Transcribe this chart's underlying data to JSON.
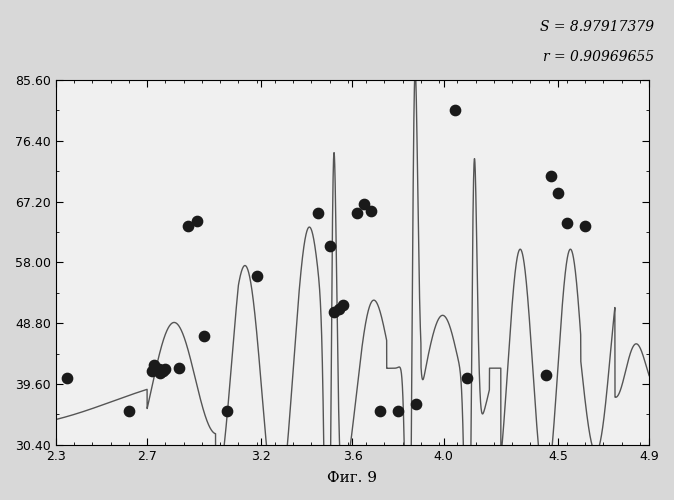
{
  "title": "",
  "xlabel": "Фиг. 9",
  "ylabel": "",
  "xlim": [
    2.3,
    4.9
  ],
  "ylim": [
    30.4,
    85.6
  ],
  "yticks": [
    30.4,
    39.6,
    48.8,
    58.0,
    67.2,
    76.4,
    85.6
  ],
  "xticks": [
    2.3,
    2.7,
    3.2,
    3.6,
    4.0,
    4.5,
    4.9
  ],
  "annotation_line1": "S = 8.97917379",
  "annotation_line2": "r = 0.90969655",
  "scatter_x": [
    2.35,
    2.62,
    2.72,
    2.73,
    2.75,
    2.755,
    2.77,
    2.78,
    2.84,
    2.88,
    2.92,
    2.95,
    3.05,
    3.18,
    3.45,
    3.5,
    3.52,
    3.54,
    3.56,
    3.62,
    3.65,
    3.68,
    3.72,
    3.8,
    3.88,
    4.05,
    4.1,
    4.45,
    4.47,
    4.5,
    4.54,
    4.62
  ],
  "scatter_y": [
    40.5,
    35.5,
    41.5,
    42.5,
    41.8,
    41.2,
    41.5,
    41.8,
    42.0,
    63.5,
    64.2,
    46.8,
    35.5,
    56.0,
    65.5,
    60.5,
    50.5,
    51.0,
    51.5,
    65.5,
    66.8,
    65.8,
    35.5,
    35.5,
    36.5,
    81.0,
    40.5,
    41.0,
    71.0,
    68.5,
    64.0,
    63.5
  ],
  "background_color": "#d8d8d8",
  "plot_bg_color": "#f0f0f0",
  "line_color": "#555555",
  "dot_color": "#1a1a1a",
  "dot_size": 55
}
